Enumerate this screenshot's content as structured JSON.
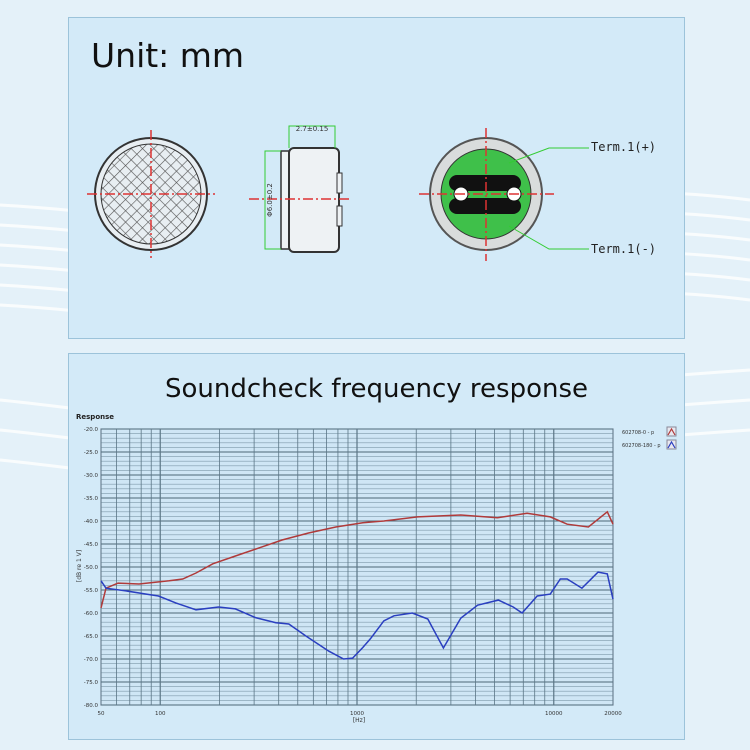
{
  "drawing": {
    "unit_label": "Unit: mm",
    "dimension_width": "2.7±0.15",
    "dimension_diameter": "Φ6.0±0.2",
    "terminal_plus": "Term.1(+)",
    "terminal_minus": "Term.1(-)"
  },
  "chart_data": {
    "type": "line",
    "title": "Soundcheck frequency response",
    "panel_label": "Response",
    "xlabel": "[Hz]",
    "ylabel": "[dB re 1 V]",
    "x_scale": "log",
    "xlim": [
      50,
      20000
    ],
    "ylim": [
      -80,
      -20
    ],
    "x_ticks": [
      "50",
      "100",
      "1000",
      "10000",
      "20000"
    ],
    "y_ticks": [
      "-20.0",
      "-25.0",
      "-30.0",
      "-35.0",
      "-40.0",
      "-45.0",
      "-50.0",
      "-55.0",
      "-60.0",
      "-65.0",
      "-70.0",
      "-75.0",
      "-80.0"
    ],
    "grid": true,
    "legend_position": "right",
    "series": [
      {
        "name": "602708-0 - p",
        "color": "#b03a3a",
        "x": [
          50,
          53,
          61,
          78,
          111,
          130,
          152,
          185,
          241,
          316,
          418,
          567,
          780,
          1070,
          1370,
          2030,
          3370,
          5170,
          7320,
          9600,
          11700,
          15000,
          18700,
          20000
        ],
        "y": [
          -58.9,
          -54.6,
          -53.5,
          -53.7,
          -53.0,
          -52.6,
          -51.3,
          -49.3,
          -47.6,
          -45.9,
          -44.1,
          -42.6,
          -41.3,
          -40.4,
          -40.0,
          -39.1,
          -38.7,
          -39.3,
          -38.3,
          -39.1,
          -40.7,
          -41.3,
          -38.0,
          -40.7
        ]
      },
      {
        "name": "602708-180 - p",
        "color": "#2a3fc0",
        "x": [
          50,
          53,
          67,
          85,
          98,
          120,
          152,
          198,
          241,
          305,
          387,
          450,
          550,
          720,
          855,
          950,
          1070,
          1170,
          1370,
          1540,
          1910,
          2290,
          2750,
          3370,
          4100,
          5230,
          6220,
          6900,
          8240,
          9600,
          10800,
          11700,
          13900,
          16800,
          18700,
          20000
        ],
        "y": [
          -53.0,
          -54.6,
          -55.2,
          -55.9,
          -56.3,
          -57.8,
          -59.3,
          -58.7,
          -59.1,
          -61.0,
          -62.1,
          -62.4,
          -65.0,
          -68.3,
          -70.0,
          -69.8,
          -67.5,
          -65.6,
          -61.7,
          -60.6,
          -60.0,
          -61.3,
          -67.6,
          -61.1,
          -58.3,
          -57.2,
          -58.7,
          -60.0,
          -56.3,
          -55.9,
          -52.6,
          -52.6,
          -54.6,
          -51.1,
          -51.5,
          -57.0
        ]
      }
    ]
  }
}
